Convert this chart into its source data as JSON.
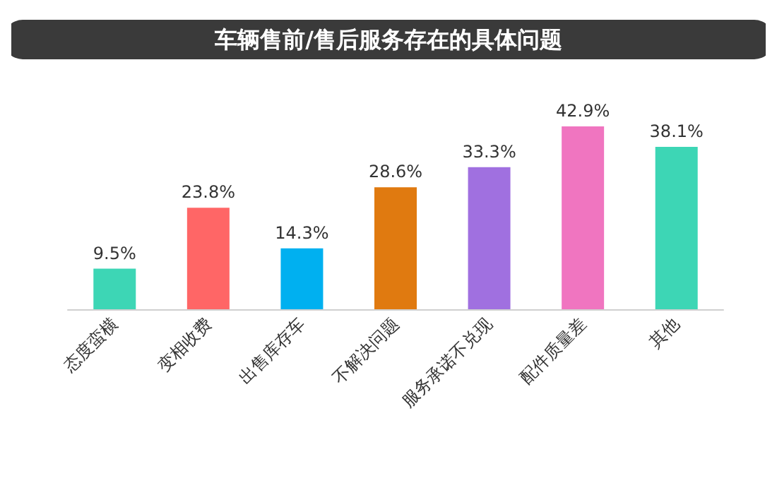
{
  "chart_data": {
    "type": "bar",
    "title": "车辆售前/售后服务存在的具体问题",
    "categories": [
      "态度蛮横",
      "变相收费",
      "出售库存车",
      "不解决问题",
      "服务承诺不兑现",
      "配件质量差",
      "其他"
    ],
    "values": [
      9.5,
      23.8,
      14.3,
      28.6,
      33.3,
      42.9,
      38.1
    ],
    "value_labels": [
      "9.5%",
      "23.8%",
      "14.3%",
      "28.6%",
      "33.3%",
      "42.9%",
      "38.1%"
    ],
    "colors": [
      "#3dd6b5",
      "#ff6666",
      "#00b0f0",
      "#e07a10",
      "#a070e0",
      "#f075c0",
      "#3dd6b5"
    ]
  }
}
